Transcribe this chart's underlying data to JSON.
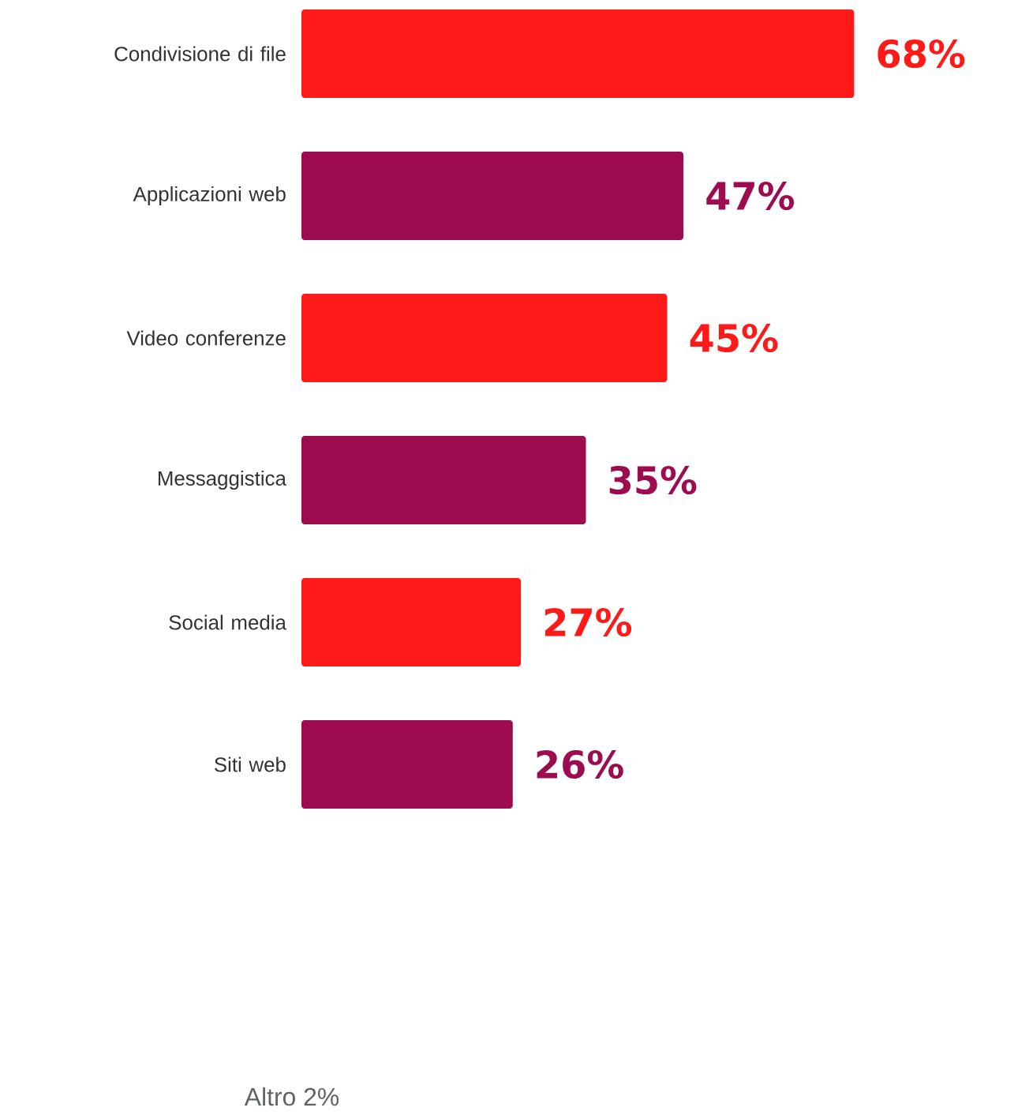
{
  "chart_data": {
    "type": "bar",
    "orientation": "horizontal",
    "categories": [
      "Condivisione di file",
      "Applicazioni web",
      "Video conferenze",
      "Messaggistica",
      "Social media",
      "Siti web"
    ],
    "values": [
      68,
      47,
      45,
      35,
      27,
      26
    ],
    "colors": [
      "#ff1a1a",
      "#9e0c50",
      "#ff1a1a",
      "#9e0c50",
      "#ff1a1a",
      "#9e0c50"
    ],
    "value_labels": [
      "68%",
      "47%",
      "45%",
      "35%",
      "27%",
      "26%"
    ],
    "annotations": [
      "Altro 2%"
    ]
  }
}
